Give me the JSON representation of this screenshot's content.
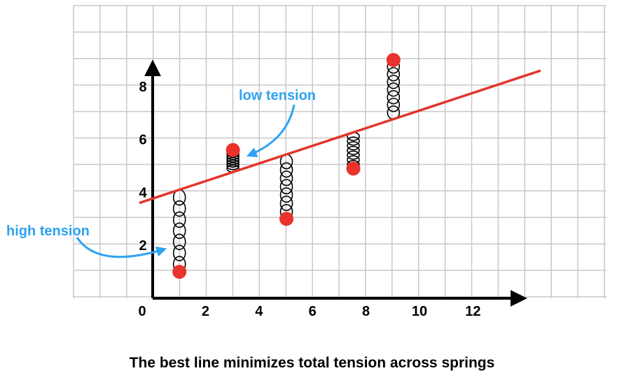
{
  "chart_data": {
    "type": "scatter",
    "x_ticks": [
      "0",
      "2",
      "4",
      "6",
      "8",
      "10",
      "12"
    ],
    "y_ticks": [
      "2",
      "4",
      "6",
      "8"
    ],
    "points": [
      {
        "x": 1,
        "y": 1
      },
      {
        "x": 3,
        "y": 5.6
      },
      {
        "x": 5,
        "y": 3
      },
      {
        "x": 7.5,
        "y": 4.9
      },
      {
        "x": 9,
        "y": 9
      }
    ],
    "fit_line": {
      "x": [
        -0.5,
        14.5
      ],
      "y": [
        3.6,
        8.6
      ]
    },
    "grid": true,
    "colors": {
      "points": "#e8322b",
      "line": "#e2352c",
      "annotation": "#2ea3f2",
      "grid": "#c8c8c8"
    }
  },
  "annotations": {
    "low_tension": "low tension",
    "high_tension": "high tension"
  },
  "caption": "The best line minimizes total tension across springs"
}
